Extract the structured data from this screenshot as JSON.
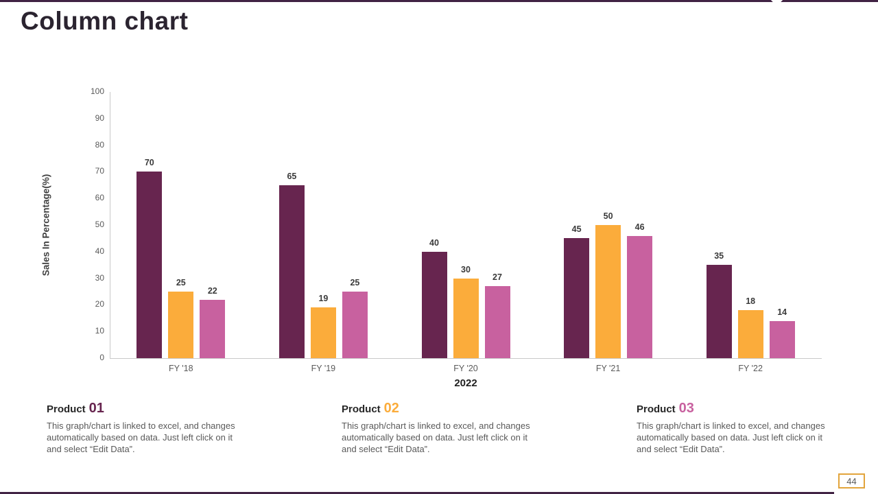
{
  "slide": {
    "title": "Column chart",
    "page_number": "44"
  },
  "chart_data": {
    "type": "bar",
    "title": "",
    "categories": [
      "FY '18",
      "FY '19",
      "FY '20",
      "FY '21",
      "FY '22"
    ],
    "series": [
      {
        "name": "Product 01",
        "color": "#67254F",
        "values": [
          70,
          65,
          40,
          45,
          35
        ]
      },
      {
        "name": "Product 02",
        "color": "#FBAC3B",
        "values": [
          25,
          19,
          30,
          50,
          18
        ]
      },
      {
        "name": "Product 03",
        "color": "#C8619F",
        "values": [
          22,
          25,
          27,
          46,
          14
        ]
      }
    ],
    "xlabel": "2022",
    "ylabel": "Sales In Percentage(%)",
    "ylim": [
      0,
      100
    ],
    "ytick_step": 10,
    "grid": false,
    "legend_position": "none",
    "value_labels": true
  },
  "products": [
    {
      "label": "Product",
      "number": "01",
      "color": "#67254F",
      "description": "This graph/chart is linked to excel, and changes automatically based on data. Just left click on it and select “Edit Data”."
    },
    {
      "label": "Product",
      "number": "02",
      "color": "#FBAC3B",
      "description": "This graph/chart is linked to excel, and changes automatically based on data. Just left click on it and select “Edit Data”."
    },
    {
      "label": "Product",
      "number": "03",
      "color": "#C8619F",
      "description": "This graph/chart is linked to excel, and changes automatically based on data. Just left click on it and select “Edit Data”."
    }
  ]
}
